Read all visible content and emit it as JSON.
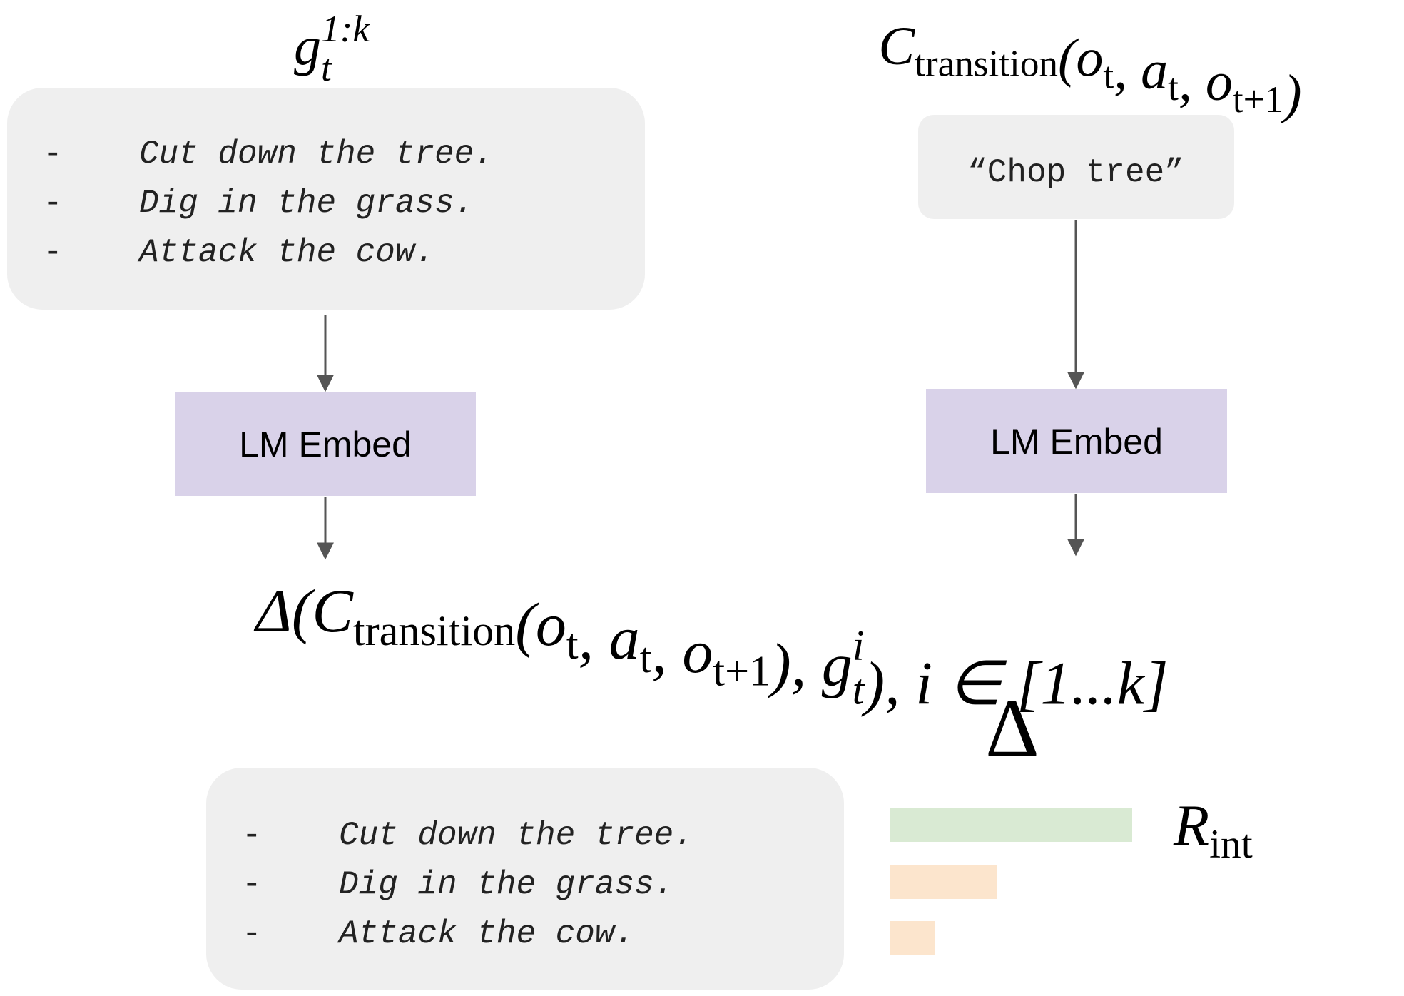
{
  "goals_label": [
    {
      "text": "g"
    },
    {
      "sub": "t",
      "sup": "1:k"
    }
  ],
  "transition_label": [
    {
      "text": "C"
    },
    {
      "sub": "transition"
    },
    {
      "text": "(o"
    },
    {
      "sub": "t"
    },
    {
      "text": ", a"
    },
    {
      "sub": "t"
    },
    {
      "text": ", o"
    },
    {
      "sub": "t+1"
    },
    {
      "text": ")"
    }
  ],
  "bullet": "-",
  "goals_box": {
    "items": [
      "Cut down the tree.",
      "Dig in the grass.",
      "Attack the cow."
    ]
  },
  "caption_box": {
    "text": "“Chop tree”"
  },
  "embed_nodes": [
    {
      "label": "LM Embed"
    },
    {
      "label": "LM Embed"
    }
  ],
  "similarity_formula": [
    {
      "text": "Δ(C"
    },
    {
      "sub": "transition"
    },
    {
      "text": "(o"
    },
    {
      "sub": "t"
    },
    {
      "text": ", a"
    },
    {
      "sub": "t"
    },
    {
      "text": ", o"
    },
    {
      "sub": "t+1"
    },
    {
      "text": "), g"
    },
    {
      "sub": "t",
      "sup": "i"
    },
    {
      "text": "), i ∈ [1...k]"
    }
  ],
  "delta_label": "Δ",
  "ranked_box": {
    "items": [
      "Cut down the tree.",
      "Dig in the grass.",
      "Attack the cow."
    ]
  },
  "reward_label": [
    {
      "text": "R"
    },
    {
      "sub": "int"
    }
  ]
}
